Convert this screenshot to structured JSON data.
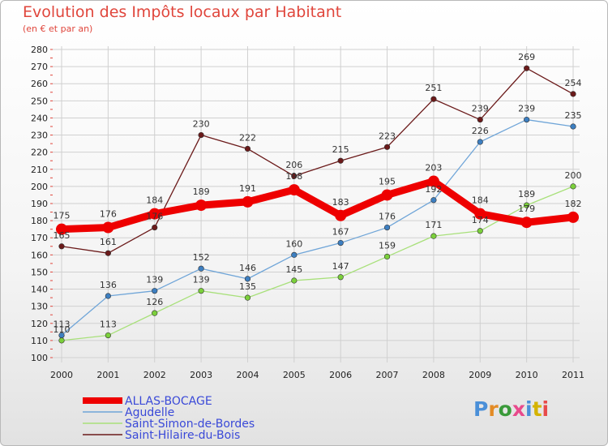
{
  "header": {
    "title": "Evolution des Impôts locaux par Habitant",
    "subtitle": "(en € et par an)"
  },
  "logo": {
    "text": "Proxiti",
    "colors": [
      "#4a8fd8",
      "#e38b25",
      "#3a9a3a",
      "#e84a8c",
      "#4a8fd8",
      "#d4b300",
      "#e84a4a"
    ]
  },
  "colors": {
    "title": "#e0463c",
    "grid": "#d0d0d0",
    "tick_marks": "#e0463c",
    "axis_text": "#222222"
  },
  "chart_data": {
    "type": "line",
    "title": "Evolution des Impôts locaux par Habitant",
    "subtitle": "(en € et par an)",
    "xlabel": "",
    "ylabel": "",
    "x": [
      "2000",
      "2001",
      "2002",
      "2003",
      "2004",
      "2005",
      "2006",
      "2007",
      "2008",
      "2009",
      "2010",
      "2011"
    ],
    "ylim": [
      100,
      280
    ],
    "yticks": [
      100,
      110,
      120,
      130,
      140,
      150,
      160,
      170,
      180,
      190,
      200,
      210,
      220,
      230,
      240,
      250,
      260,
      270,
      280
    ],
    "grid": "horizontal",
    "legend_position": "bottom-left",
    "series": [
      {
        "name": "Saint-Hilaire-du-Bois",
        "color": "#6b1a1a",
        "marker": "#6b1a1a",
        "width": "thin",
        "values": [
          165,
          161,
          176,
          230,
          222,
          206,
          215,
          223,
          251,
          239,
          269,
          254
        ]
      },
      {
        "name": "Agudelle",
        "color": "#6fa5d8",
        "marker": "#3d7fc1",
        "width": "thin",
        "values": [
          113,
          136,
          139,
          152,
          146,
          160,
          167,
          176,
          192,
          226,
          239,
          235
        ]
      },
      {
        "name": "Saint-Simon-de-Bordes",
        "color": "#a8e07a",
        "marker": "#7bd03b",
        "width": "thin",
        "values": [
          110,
          113,
          126,
          139,
          135,
          145,
          147,
          159,
          171,
          174,
          189,
          200
        ]
      },
      {
        "name": "ALLAS-BOCAGE",
        "color": "#ee0000",
        "marker": "#ee0000",
        "width": "thick",
        "values": [
          175,
          176,
          184,
          189,
          191,
          198,
          183,
          195,
          203,
          184,
          179,
          182
        ]
      }
    ],
    "legend_order": [
      "ALLAS-BOCAGE",
      "Agudelle",
      "Saint-Simon-de-Bordes",
      "Saint-Hilaire-du-Bois"
    ]
  }
}
